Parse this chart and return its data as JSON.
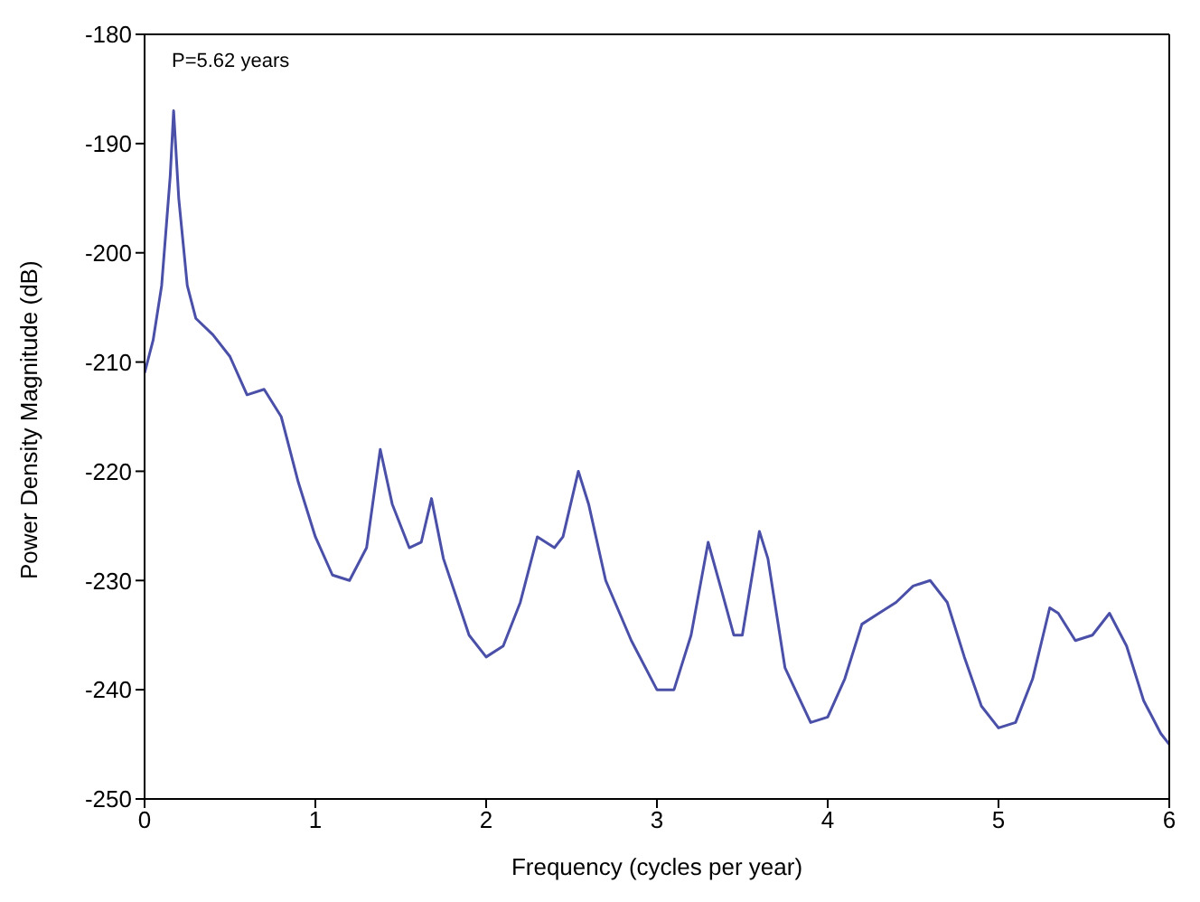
{
  "chart_data": {
    "type": "line",
    "xlabel": "Frequency (cycles per year)",
    "ylabel": "Power Density Magnitude (dB)",
    "annotations": [
      "P=5.62 years"
    ],
    "xlim": [
      0,
      6
    ],
    "xticks": [
      0,
      1,
      2,
      3,
      4,
      5,
      6
    ],
    "ylim": [
      -250,
      -180
    ],
    "yticks": [
      -250,
      -240,
      -230,
      -220,
      -210,
      -200,
      -190,
      -180
    ],
    "grid": false,
    "legend": false,
    "marker": "none",
    "line_style": "solid",
    "x": [
      0,
      0.05,
      0.1,
      0.15,
      0.17,
      0.2,
      0.25,
      0.3,
      0.4,
      0.5,
      0.6,
      0.7,
      0.8,
      0.9,
      1.0,
      1.1,
      1.2,
      1.3,
      1.38,
      1.45,
      1.55,
      1.62,
      1.68,
      1.75,
      1.9,
      2.0,
      2.1,
      2.2,
      2.3,
      2.4,
      2.45,
      2.54,
      2.6,
      2.7,
      2.85,
      3.0,
      3.1,
      3.2,
      3.3,
      3.38,
      3.45,
      3.5,
      3.6,
      3.65,
      3.75,
      3.9,
      4.0,
      4.1,
      4.2,
      4.3,
      4.4,
      4.5,
      4.6,
      4.7,
      4.8,
      4.9,
      5.0,
      5.1,
      5.2,
      5.3,
      5.35,
      5.45,
      5.55,
      5.65,
      5.75,
      5.85,
      5.95,
      6.0
    ],
    "series": [
      {
        "color": "#4a4fa8",
        "values": [
          -211,
          -208,
          -203,
          -193,
          -187,
          -195,
          -203,
          -206,
          -207.5,
          -209.5,
          -213,
          -212.5,
          -215,
          -221,
          -226,
          -229.5,
          -230,
          -227,
          -218,
          -223,
          -227,
          -226.5,
          -222.5,
          -228,
          -235,
          -237,
          -236,
          -232,
          -226,
          -227,
          -226,
          -220,
          -223,
          -230,
          -235.5,
          -240,
          -240,
          -235,
          -226.5,
          -231,
          -235,
          -235,
          -225.5,
          -228,
          -238,
          -243,
          -242.5,
          -239,
          -234,
          -233,
          -232,
          -230.5,
          -230,
          -232,
          -237,
          -241.5,
          -243.5,
          -243,
          -239,
          -232.5,
          -233,
          -235.5,
          -235,
          -233,
          -236,
          -241,
          -244,
          -245
        ]
      }
    ]
  }
}
